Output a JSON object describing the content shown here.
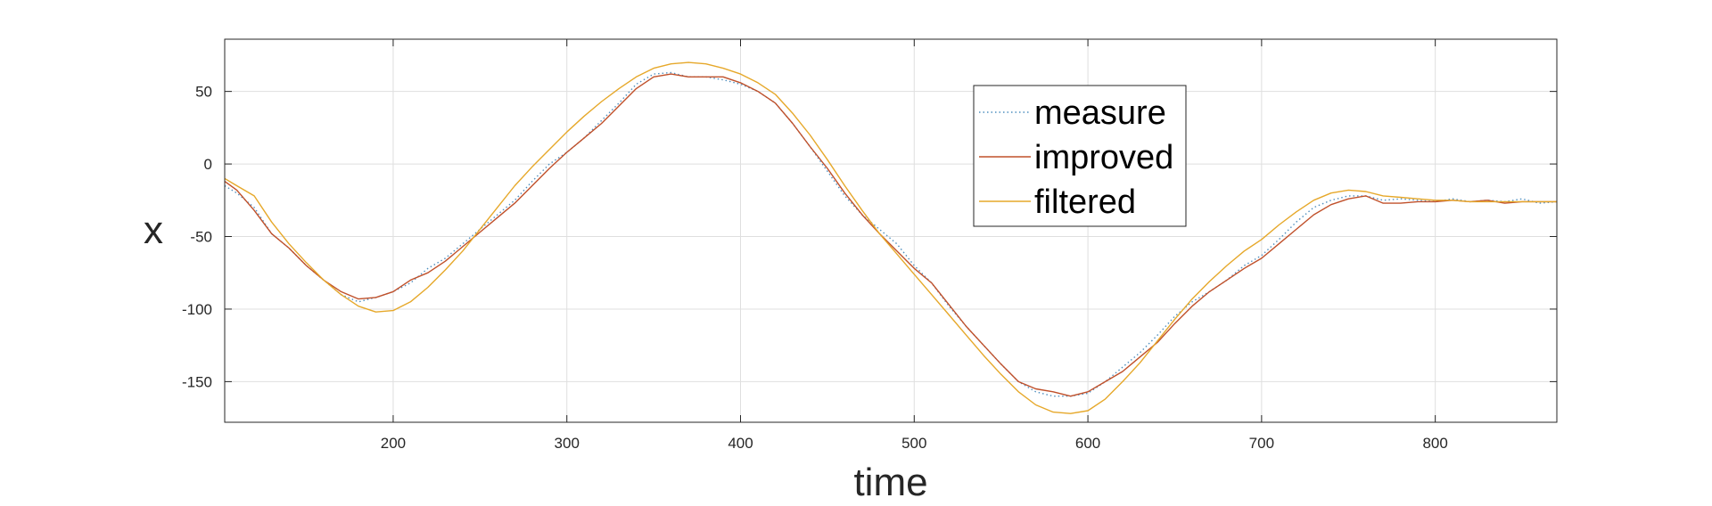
{
  "chart_data": {
    "type": "line",
    "title": "",
    "xlabel": "time",
    "ylabel": "x",
    "xlim": [
      103,
      870
    ],
    "ylim": [
      -178,
      86
    ],
    "xticks": [
      200,
      300,
      400,
      500,
      600,
      700,
      800
    ],
    "yticks": [
      50,
      0,
      -50,
      -100,
      -150
    ],
    "grid": true,
    "legend_position": "top-right",
    "series": [
      {
        "name": "measure",
        "color": "#4f8fbf",
        "style": "dotted",
        "x": [
          103,
          110,
          120,
          130,
          140,
          150,
          160,
          170,
          180,
          190,
          200,
          210,
          220,
          230,
          240,
          250,
          260,
          270,
          280,
          290,
          300,
          310,
          320,
          330,
          340,
          350,
          360,
          370,
          380,
          390,
          400,
          410,
          420,
          430,
          440,
          450,
          460,
          470,
          480,
          490,
          500,
          510,
          520,
          530,
          540,
          550,
          560,
          570,
          580,
          590,
          600,
          610,
          620,
          630,
          640,
          650,
          660,
          670,
          680,
          690,
          700,
          710,
          720,
          730,
          740,
          750,
          760,
          770,
          780,
          790,
          800,
          810,
          820,
          830,
          840,
          850,
          860,
          870
        ],
        "y": [
          -15,
          -20,
          -30,
          -48,
          -58,
          -70,
          -80,
          -90,
          -95,
          -92,
          -88,
          -82,
          -72,
          -65,
          -55,
          -45,
          -35,
          -25,
          -12,
          0,
          8,
          18,
          30,
          42,
          55,
          62,
          63,
          60,
          60,
          58,
          55,
          50,
          42,
          28,
          12,
          -5,
          -22,
          -35,
          -45,
          -55,
          -70,
          -82,
          -98,
          -112,
          -125,
          -138,
          -150,
          -157,
          -160,
          -160,
          -158,
          -150,
          -140,
          -130,
          -118,
          -105,
          -95,
          -88,
          -80,
          -70,
          -63,
          -52,
          -40,
          -30,
          -25,
          -22,
          -22,
          -25,
          -24,
          -25,
          -26,
          -24,
          -26,
          -25,
          -26,
          -24,
          -27,
          -26
        ]
      },
      {
        "name": "improved",
        "color": "#c0502a",
        "style": "solid",
        "x": [
          103,
          110,
          120,
          130,
          140,
          150,
          160,
          170,
          180,
          190,
          200,
          210,
          220,
          230,
          240,
          250,
          260,
          270,
          280,
          290,
          300,
          310,
          320,
          330,
          340,
          350,
          360,
          370,
          380,
          390,
          400,
          410,
          420,
          430,
          440,
          450,
          460,
          470,
          480,
          490,
          500,
          510,
          520,
          530,
          540,
          550,
          560,
          570,
          580,
          590,
          600,
          610,
          620,
          630,
          640,
          650,
          660,
          670,
          680,
          690,
          700,
          710,
          720,
          730,
          740,
          750,
          760,
          770,
          780,
          790,
          800,
          810,
          820,
          830,
          840,
          850,
          860,
          870
        ],
        "y": [
          -12,
          -18,
          -32,
          -48,
          -58,
          -70,
          -80,
          -88,
          -93,
          -92,
          -88,
          -80,
          -75,
          -67,
          -57,
          -47,
          -37,
          -27,
          -15,
          -3,
          8,
          18,
          28,
          40,
          52,
          60,
          62,
          60,
          60,
          60,
          56,
          50,
          42,
          28,
          12,
          -3,
          -20,
          -35,
          -48,
          -60,
          -72,
          -82,
          -97,
          -112,
          -125,
          -138,
          -150,
          -155,
          -157,
          -160,
          -157,
          -150,
          -143,
          -133,
          -123,
          -110,
          -98,
          -88,
          -80,
          -72,
          -65,
          -55,
          -45,
          -35,
          -28,
          -24,
          -22,
          -27,
          -27,
          -26,
          -26,
          -25,
          -26,
          -25,
          -27,
          -26,
          -26,
          -26
        ]
      },
      {
        "name": "filtered",
        "color": "#e6a82a",
        "style": "solid",
        "x": [
          103,
          110,
          120,
          130,
          140,
          150,
          160,
          170,
          180,
          190,
          200,
          210,
          220,
          230,
          240,
          250,
          260,
          270,
          280,
          290,
          300,
          310,
          320,
          330,
          340,
          350,
          360,
          370,
          380,
          390,
          400,
          410,
          420,
          430,
          440,
          450,
          460,
          470,
          480,
          490,
          500,
          510,
          520,
          530,
          540,
          550,
          560,
          570,
          580,
          590,
          600,
          610,
          620,
          630,
          640,
          650,
          660,
          670,
          680,
          690,
          700,
          710,
          720,
          730,
          740,
          750,
          760,
          770,
          780,
          790,
          800,
          810,
          820,
          830,
          840,
          850,
          860,
          870
        ],
        "y": [
          -10,
          -15,
          -22,
          -40,
          -55,
          -68,
          -80,
          -90,
          -98,
          -102,
          -101,
          -95,
          -85,
          -73,
          -60,
          -45,
          -30,
          -15,
          -2,
          10,
          22,
          33,
          43,
          52,
          60,
          66,
          69,
          70,
          69,
          66,
          62,
          56,
          48,
          35,
          20,
          3,
          -15,
          -32,
          -48,
          -62,
          -76,
          -90,
          -104,
          -118,
          -132,
          -145,
          -157,
          -166,
          -171,
          -172,
          -170,
          -162,
          -150,
          -137,
          -122,
          -107,
          -93,
          -81,
          -70,
          -60,
          -52,
          -42,
          -33,
          -25,
          -20,
          -18,
          -19,
          -22,
          -23,
          -24,
          -25,
          -25,
          -26,
          -26,
          -26,
          -26,
          -26,
          -26
        ]
      }
    ]
  }
}
